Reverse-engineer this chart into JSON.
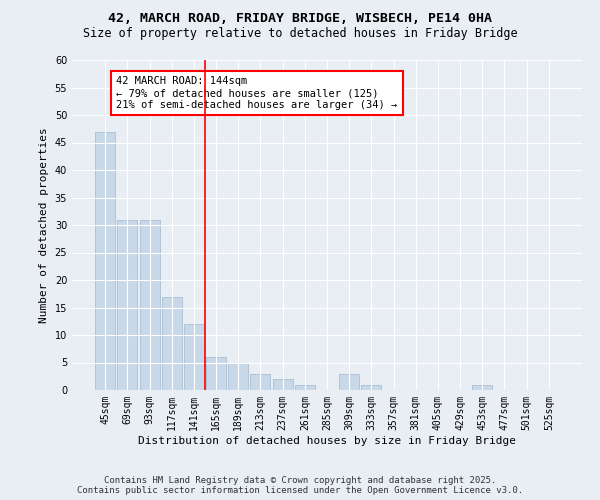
{
  "title": "42, MARCH ROAD, FRIDAY BRIDGE, WISBECH, PE14 0HA",
  "subtitle": "Size of property relative to detached houses in Friday Bridge",
  "xlabel": "Distribution of detached houses by size in Friday Bridge",
  "ylabel": "Number of detached properties",
  "categories": [
    "45sqm",
    "69sqm",
    "93sqm",
    "117sqm",
    "141sqm",
    "165sqm",
    "189sqm",
    "213sqm",
    "237sqm",
    "261sqm",
    "285sqm",
    "309sqm",
    "333sqm",
    "357sqm",
    "381sqm",
    "405sqm",
    "429sqm",
    "453sqm",
    "477sqm",
    "501sqm",
    "525sqm"
  ],
  "values": [
    47,
    31,
    31,
    17,
    12,
    6,
    5,
    3,
    2,
    1,
    0,
    3,
    1,
    0,
    0,
    0,
    0,
    1,
    0,
    0,
    0
  ],
  "bar_color": "#c8d8e8",
  "bar_edge_color": "#a0b8cc",
  "vline_x": 4.5,
  "vline_color": "red",
  "annotation_text": "42 MARCH ROAD: 144sqm\n← 79% of detached houses are smaller (125)\n21% of semi-detached houses are larger (34) →",
  "annotation_box_color": "white",
  "annotation_box_edge_color": "red",
  "ylim": [
    0,
    60
  ],
  "yticks": [
    0,
    5,
    10,
    15,
    20,
    25,
    30,
    35,
    40,
    45,
    50,
    55,
    60
  ],
  "background_color": "#e8eef4",
  "grid_color": "white",
  "footer": "Contains HM Land Registry data © Crown copyright and database right 2025.\nContains public sector information licensed under the Open Government Licence v3.0.",
  "title_fontsize": 9.5,
  "subtitle_fontsize": 8.5,
  "axis_label_fontsize": 8,
  "tick_fontsize": 7,
  "annotation_fontsize": 7.5,
  "footer_fontsize": 6.5
}
